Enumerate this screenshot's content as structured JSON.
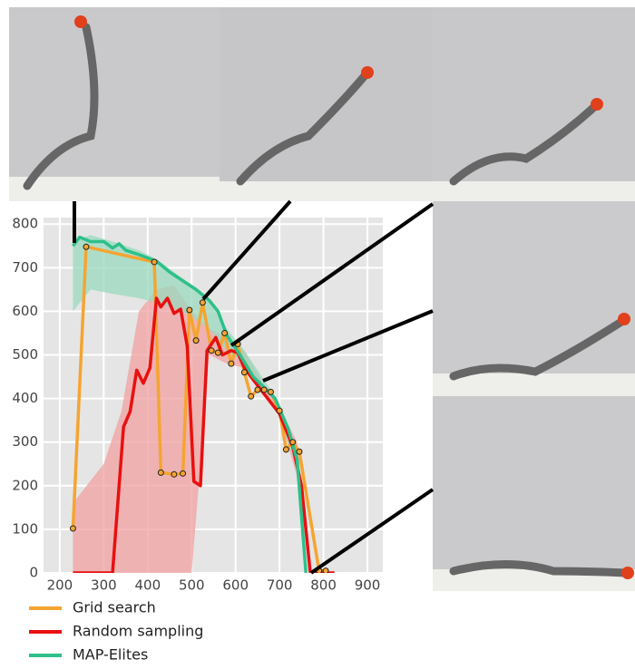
{
  "chart_data": {
    "type": "line",
    "xlim": [
      163,
      935
    ],
    "ylim": [
      0,
      815
    ],
    "xticks": [
      200,
      300,
      400,
      500,
      600,
      700,
      800,
      900
    ],
    "yticks": [
      0,
      100,
      200,
      300,
      400,
      500,
      600,
      700,
      800
    ],
    "grid": true,
    "legend": "below",
    "series": [
      {
        "name": "Grid search",
        "color": "#f5a431",
        "markers": true,
        "x": [
          230,
          260,
          415,
          430,
          460,
          480,
          495,
          510,
          525,
          545,
          560,
          575,
          590,
          605,
          620,
          635,
          650,
          665,
          680,
          700,
          715,
          730,
          745,
          790,
          805
        ],
        "values": [
          102,
          748,
          713,
          230,
          226,
          228,
          603,
          533,
          620,
          510,
          505,
          550,
          480,
          525,
          460,
          405,
          420,
          420,
          415,
          372,
          283,
          300,
          278,
          5,
          5
        ]
      },
      {
        "name": "Random sampling",
        "color": "#e8100f",
        "markers": false,
        "x": [
          230,
          320,
          345,
          360,
          375,
          390,
          405,
          420,
          430,
          445,
          460,
          475,
          490,
          505,
          520,
          535,
          555,
          570,
          590,
          605,
          620,
          650,
          700,
          730,
          750,
          770,
          825
        ],
        "values": [
          0,
          0,
          335,
          370,
          465,
          435,
          470,
          630,
          610,
          630,
          595,
          605,
          520,
          210,
          200,
          510,
          540,
          500,
          510,
          505,
          470,
          430,
          365,
          290,
          200,
          0,
          0
        ],
        "band_color": "#f0a0a0",
        "band_x": [
          230,
          300,
          340,
          380,
          420,
          460,
          500,
          540,
          580,
          620,
          660,
          700,
          740,
          770
        ],
        "band_low": [
          0,
          0,
          0,
          0,
          0,
          0,
          0,
          500,
          480,
          470,
          420,
          360,
          220,
          0
        ],
        "band_high": [
          160,
          250,
          370,
          600,
          650,
          660,
          600,
          560,
          540,
          510,
          440,
          380,
          300,
          0
        ]
      },
      {
        "name": "MAP-Elites",
        "color": "#2ec08a",
        "markers": false,
        "x": [
          230,
          245,
          270,
          300,
          320,
          335,
          350,
          380,
          420,
          450,
          480,
          510,
          540,
          560,
          580,
          610,
          640,
          660,
          690,
          720,
          740,
          760
        ],
        "values": [
          750,
          770,
          760,
          760,
          745,
          755,
          740,
          730,
          715,
          690,
          670,
          650,
          625,
          600,
          545,
          500,
          450,
          430,
          400,
          330,
          260,
          0
        ],
        "band_color": "#9ad9bd",
        "band_x": [
          230,
          270,
          320,
          380,
          420,
          480,
          540,
          580,
          620,
          680,
          740,
          760
        ],
        "band_low": [
          600,
          650,
          640,
          630,
          620,
          600,
          560,
          510,
          480,
          410,
          240,
          0
        ],
        "band_high": [
          760,
          775,
          760,
          740,
          720,
          675,
          630,
          560,
          510,
          420,
          270,
          0
        ]
      }
    ]
  }
}
